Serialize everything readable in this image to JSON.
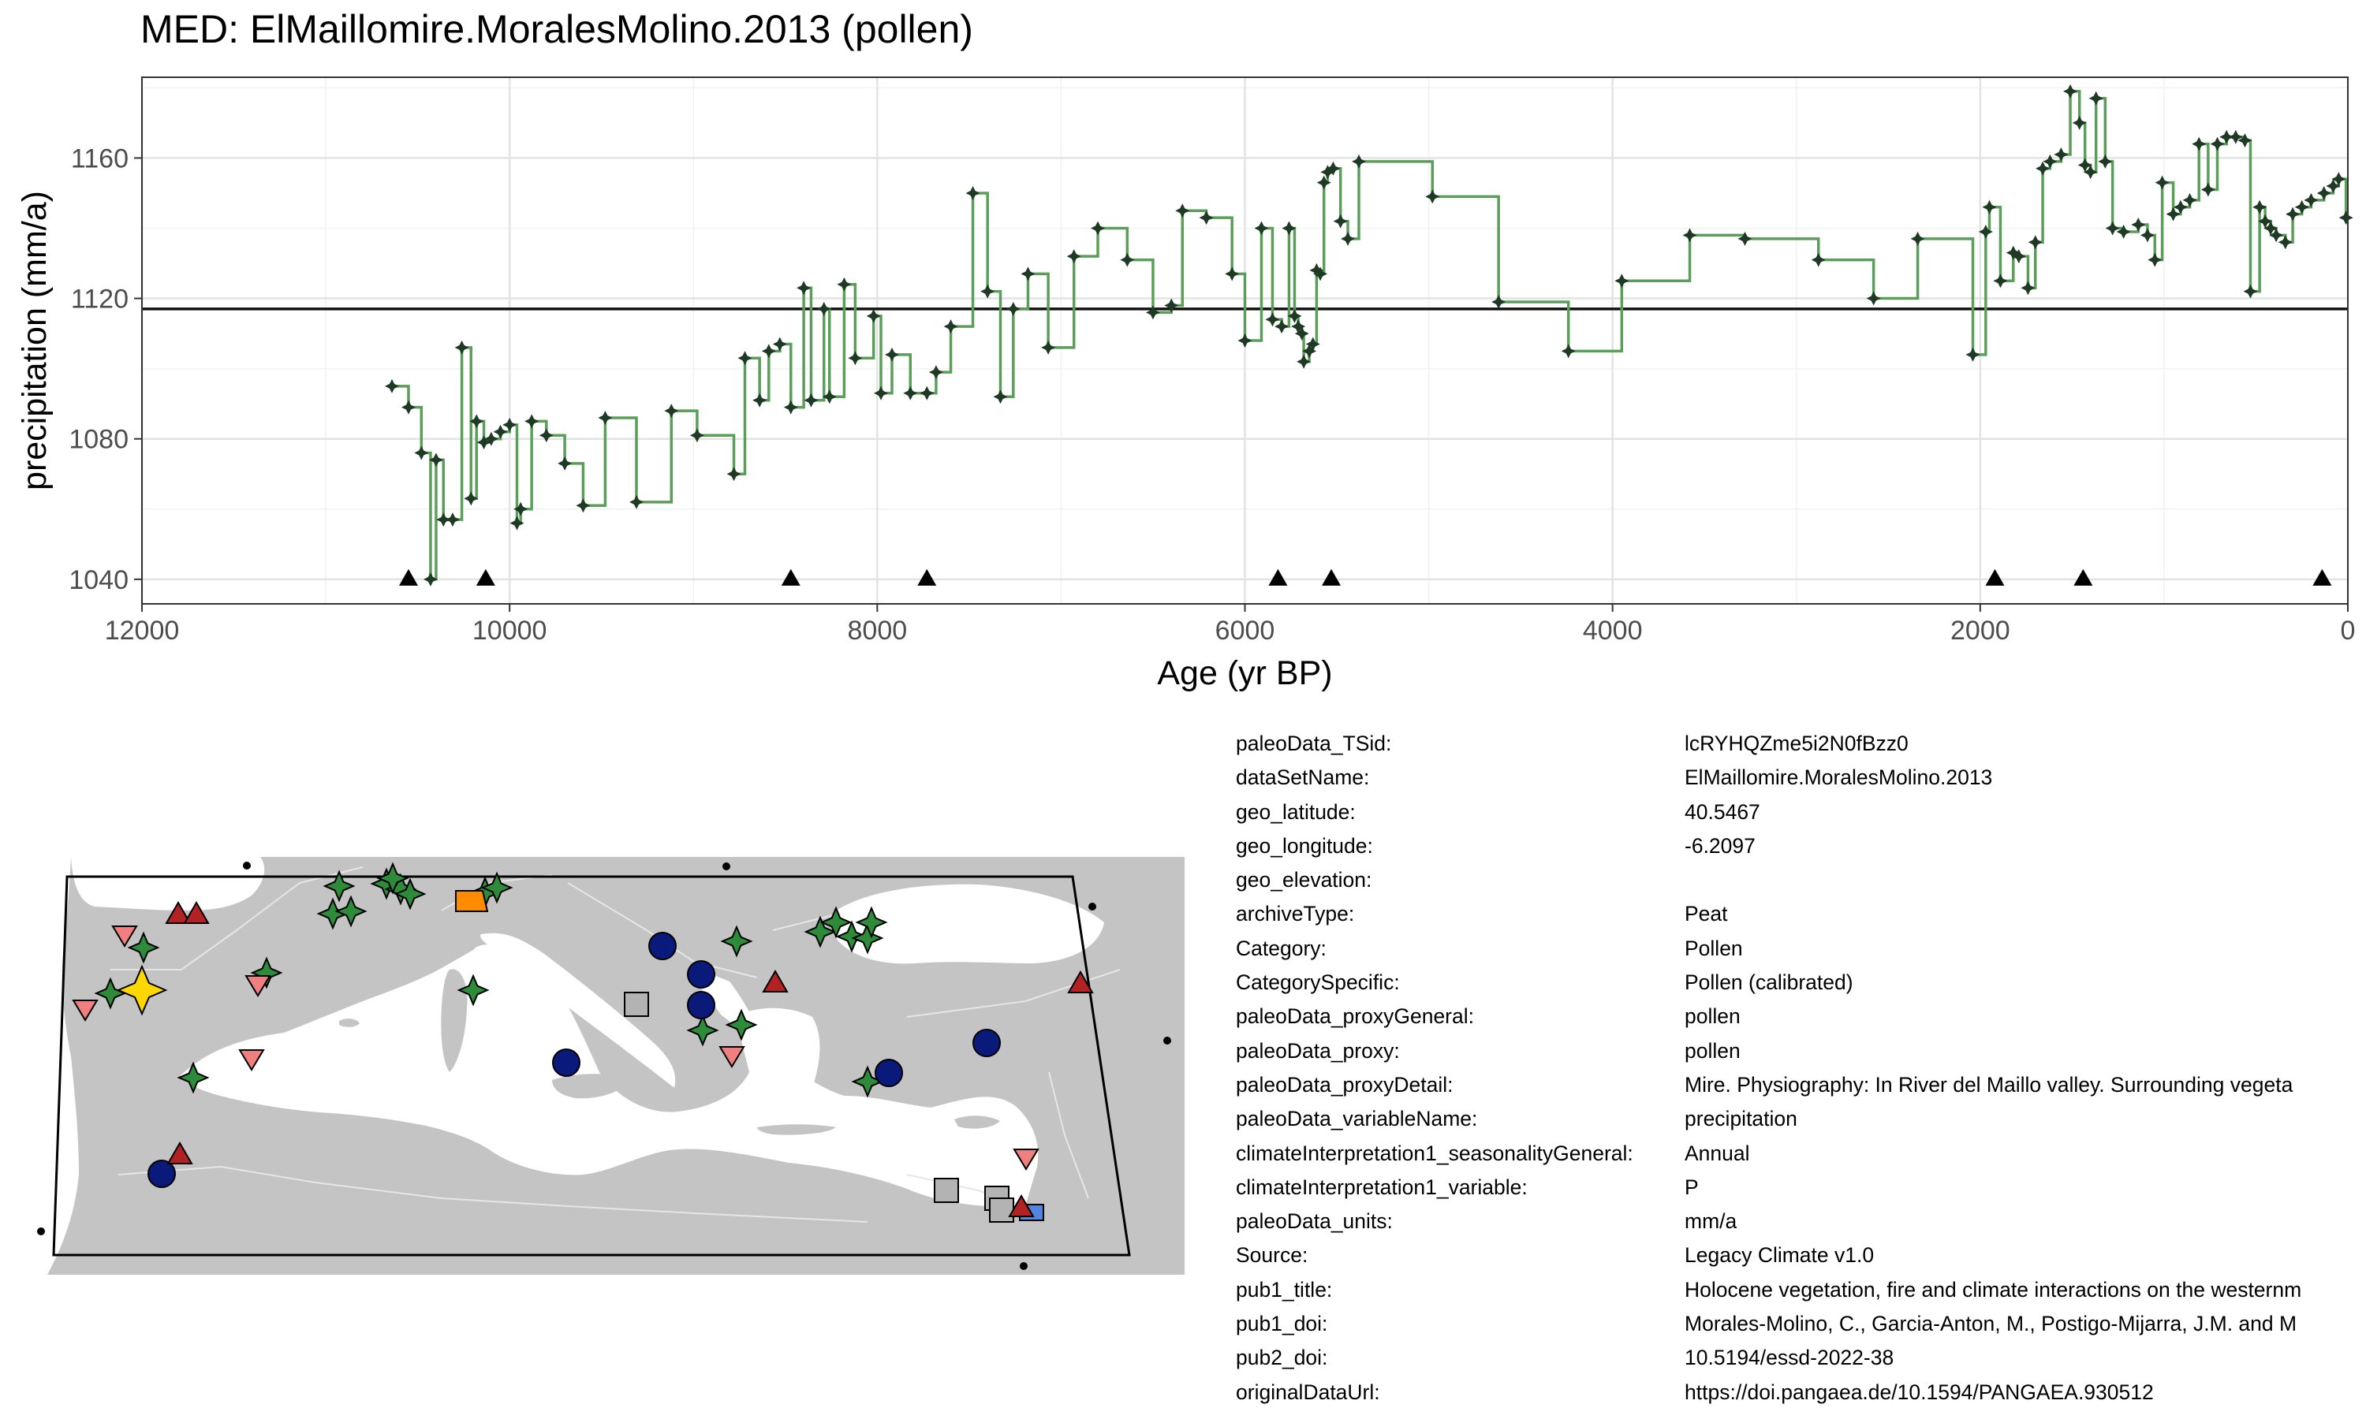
{
  "title": "MED: ElMaillomire.MoralesMolino.2013 (pollen)",
  "chart_data": {
    "type": "line",
    "step": true,
    "xlabel": "Age (yr BP)",
    "ylabel": "precipitation (mm/a)",
    "xlim": [
      12000,
      0
    ],
    "ylim": [
      1033,
      1183
    ],
    "x_reversed": true,
    "x_ticks": [
      12000,
      10000,
      8000,
      6000,
      4000,
      2000,
      0
    ],
    "y_ticks": [
      1040,
      1080,
      1120,
      1160
    ],
    "grid": true,
    "line_color": "#5a9e5a",
    "point_color": "#1e3a24",
    "mean_line": 1117,
    "series": [
      {
        "x": [
          10640,
          10550,
          10480,
          10430,
          10400,
          10360,
          10310,
          10260,
          10210,
          10180,
          10140,
          10100,
          10050,
          10000,
          9960,
          9940,
          9880,
          9800,
          9700,
          9600,
          9480,
          9310,
          9120,
          8980,
          8780,
          8720,
          8640,
          8590,
          8530,
          8470,
          8400,
          8360,
          8290,
          8260,
          8180,
          8120,
          8020,
          7980,
          7920,
          7820,
          7730,
          7680,
          7600,
          7480,
          7400,
          7330,
          7260,
          7180,
          7070,
          6930,
          6800,
          6640,
          6500,
          6400,
          6340,
          6210,
          6070,
          6000,
          5910,
          5850,
          5800,
          5760,
          5730,
          5710,
          5690,
          5680,
          5650,
          5630,
          5610,
          5590,
          5570,
          5550,
          5520,
          5480,
          5440,
          5380,
          4980,
          4620,
          4240,
          3950,
          3580,
          3280,
          2880,
          2580,
          2340,
          2040,
          1970,
          1950,
          1890,
          1820,
          1790,
          1740,
          1700,
          1660,
          1620,
          1560,
          1510,
          1460,
          1430,
          1400,
          1370,
          1320,
          1280,
          1220,
          1140,
          1090,
          1050,
          1010,
          950,
          910,
          860,
          810,
          760,
          710,
          660,
          610,
          560,
          530,
          480,
          450,
          420,
          390,
          340,
          300,
          250,
          200,
          130,
          80,
          50,
          10
        ],
        "y": [
          1095,
          1089,
          1076,
          1040,
          1074,
          1057,
          1057,
          1106,
          1063,
          1085,
          1079,
          1080,
          1082,
          1084,
          1056,
          1060,
          1085,
          1081,
          1073,
          1061,
          1086,
          1062,
          1088,
          1081,
          1070,
          1103,
          1091,
          1105,
          1107,
          1089,
          1123,
          1091,
          1117,
          1092,
          1124,
          1103,
          1115,
          1093,
          1104,
          1093,
          1093,
          1099,
          1112,
          1150,
          1122,
          1092,
          1117,
          1127,
          1106,
          1132,
          1140,
          1131,
          1116,
          1118,
          1145,
          1143,
          1127,
          1108,
          1140,
          1114,
          1112,
          1140,
          1115,
          1112,
          1110,
          1102,
          1105,
          1107,
          1128,
          1127,
          1153,
          1156,
          1157,
          1142,
          1137,
          1159,
          1149,
          1119,
          1105,
          1125,
          1138,
          1137,
          1131,
          1120,
          1137,
          1104,
          1139,
          1146,
          1125,
          1133,
          1132,
          1123,
          1136,
          1157,
          1159,
          1161,
          1179,
          1170,
          1158,
          1156,
          1177,
          1159,
          1140,
          1139,
          1141,
          1138,
          1131,
          1153,
          1144,
          1146,
          1148,
          1164,
          1151,
          1164,
          1166,
          1166,
          1165,
          1122,
          1146,
          1142,
          1140,
          1138,
          1136,
          1144,
          1146,
          1148,
          1150,
          1152,
          1154,
          1143
        ]
      }
    ],
    "markers_x": [
      10550,
      10130,
      8470,
      7730,
      5820,
      5530,
      1920,
      1440,
      140
    ]
  },
  "map": {
    "land_color": "#c4c4c4",
    "sea_color": "#ffffff",
    "symbols": {
      "star": "#2e8b3a",
      "star_selected": "#ffd700",
      "circle": "#0a1a7a",
      "square": "#b3b3b3",
      "triangle_up": "#b22222",
      "triangle_down": "#f08080",
      "orange": "#ff8c00",
      "blue_square": "#4f86e0"
    }
  },
  "metadata": [
    {
      "key": "paleoData_TSid:",
      "value": "lcRYHQZme5i2N0fBzz0"
    },
    {
      "key": "dataSetName:",
      "value": "ElMaillomire.MoralesMolino.2013"
    },
    {
      "key": "geo_latitude:",
      "value": "40.5467"
    },
    {
      "key": "geo_longitude:",
      "value": "-6.2097"
    },
    {
      "key": "geo_elevation:",
      "value": ""
    },
    {
      "key": "archiveType:",
      "value": "Peat"
    },
    {
      "key": "Category:",
      "value": "Pollen"
    },
    {
      "key": "CategorySpecific:",
      "value": "Pollen (calibrated)"
    },
    {
      "key": "paleoData_proxyGeneral:",
      "value": "pollen"
    },
    {
      "key": "paleoData_proxy:",
      "value": "pollen"
    },
    {
      "key": "paleoData_proxyDetail:",
      "value": "Mire. Physiography: In River del Maillo valley. Surrounding vegeta"
    },
    {
      "key": "paleoData_variableName:",
      "value": "precipitation"
    },
    {
      "key": "climateInterpretation1_seasonalityGeneral:",
      "value": "Annual"
    },
    {
      "key": "climateInterpretation1_variable:",
      "value": "P"
    },
    {
      "key": "paleoData_units:",
      "value": "mm/a"
    },
    {
      "key": "Source:",
      "value": "Legacy Climate v1.0"
    },
    {
      "key": "pub1_title:",
      "value": "Holocene vegetation, fire and climate interactions on the westernm"
    },
    {
      "key": "pub1_doi:",
      "value": "Morales-Molino, C., Garcia-Anton, M., Postigo-Mijarra, J.M. and M"
    },
    {
      "key": "pub2_doi:",
      "value": "10.5194/essd-2022-38"
    },
    {
      "key": "originalDataUrl:",
      "value": "https://doi.pangaea.de/10.1594/PANGAEA.930512"
    }
  ]
}
